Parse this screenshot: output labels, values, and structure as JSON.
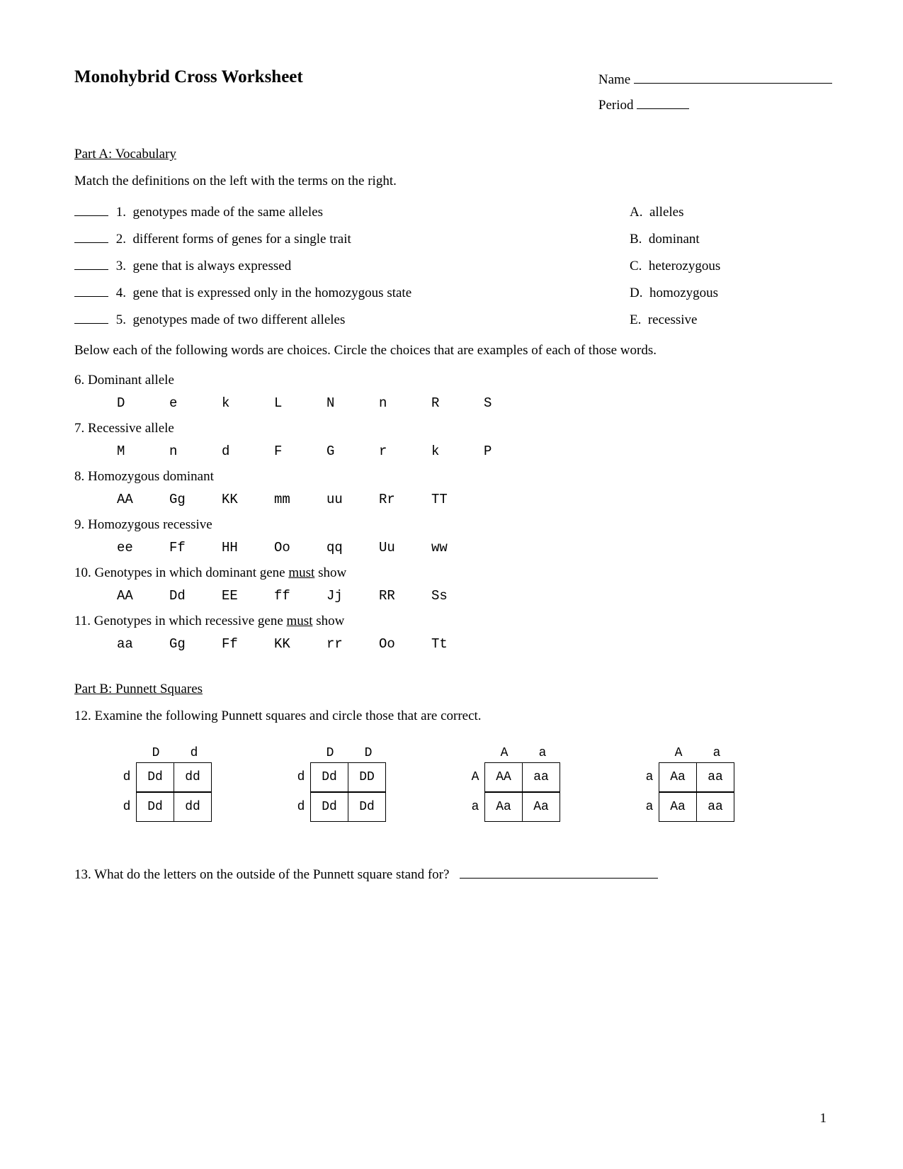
{
  "title": "Monohybrid Cross Worksheet",
  "header": {
    "name_label": "Name",
    "period_label": "Period"
  },
  "partA": {
    "heading": "Part A:  Vocabulary",
    "instructions": "Match the definitions on the left with the terms on the right.",
    "matches": [
      {
        "num": "1.",
        "def": "genotypes made of the same alleles",
        "letter": "A.",
        "term": "alleles"
      },
      {
        "num": "2.",
        "def": "different forms of genes for a single trait",
        "letter": "B.",
        "term": "dominant"
      },
      {
        "num": "3.",
        "def": "gene that is always expressed",
        "letter": "C.",
        "term": "heterozygous"
      },
      {
        "num": "4.",
        "def": "gene that is expressed only in the homozygous state",
        "letter": "D.",
        "term": "homozygous"
      },
      {
        "num": "5.",
        "def": "genotypes made of two different alleles",
        "letter": "E.",
        "term": "recessive"
      }
    ],
    "below_instructions": "Below each of the following words are choices.  Circle the choices that are examples of each of those words.",
    "circle_questions": [
      {
        "num": "6.",
        "label": "Dominant allele",
        "options": [
          "D",
          "e",
          "k",
          "L",
          "N",
          "n",
          "R",
          "S"
        ]
      },
      {
        "num": "7.",
        "label": "Recessive allele",
        "options": [
          "M",
          "n",
          "d",
          "F",
          "G",
          "r",
          "k",
          "P"
        ]
      },
      {
        "num": "8.",
        "label": "Homozygous dominant",
        "options": [
          "AA",
          "Gg",
          "KK",
          "mm",
          "uu",
          "Rr",
          "TT"
        ]
      },
      {
        "num": "9.",
        "label": "Homozygous recessive",
        "options": [
          "ee",
          "Ff",
          "HH",
          "Oo",
          "qq",
          "Uu",
          "ww"
        ]
      },
      {
        "num": "10.",
        "label_pre": "Genotypes in which dominant gene ",
        "label_u": "must",
        "label_post": " show",
        "options": [
          "AA",
          "Dd",
          "EE",
          "ff",
          "Jj",
          "RR",
          "Ss"
        ]
      },
      {
        "num": "11.",
        "label_pre": "Genotypes in which recessive gene ",
        "label_u": "must",
        "label_post": " show",
        "options": [
          "aa",
          "Gg",
          "Ff",
          "KK",
          "rr",
          "Oo",
          "Tt"
        ]
      }
    ]
  },
  "partB": {
    "heading": "Part B:  Punnett Squares",
    "q12": "12. Examine the following Punnett squares and circle those that are correct.",
    "squares": [
      {
        "top": [
          "D",
          "d"
        ],
        "side": [
          "d",
          "d"
        ],
        "cells": [
          [
            "Dd",
            "dd"
          ],
          [
            "Dd",
            "dd"
          ]
        ]
      },
      {
        "top": [
          "D",
          "D"
        ],
        "side": [
          "d",
          "d"
        ],
        "cells": [
          [
            "Dd",
            "DD"
          ],
          [
            "Dd",
            "Dd"
          ]
        ]
      },
      {
        "top": [
          "A",
          "a"
        ],
        "side": [
          "A",
          "a"
        ],
        "cells": [
          [
            "AA",
            "aa"
          ],
          [
            "Aa",
            "Aa"
          ]
        ]
      },
      {
        "top": [
          "A",
          "a"
        ],
        "side": [
          "a",
          "a"
        ],
        "cells": [
          [
            "Aa",
            "aa"
          ],
          [
            "Aa",
            "aa"
          ]
        ]
      }
    ],
    "q13": "13. What do the letters on the outside of the Punnett square stand for?"
  },
  "page_number": "1"
}
